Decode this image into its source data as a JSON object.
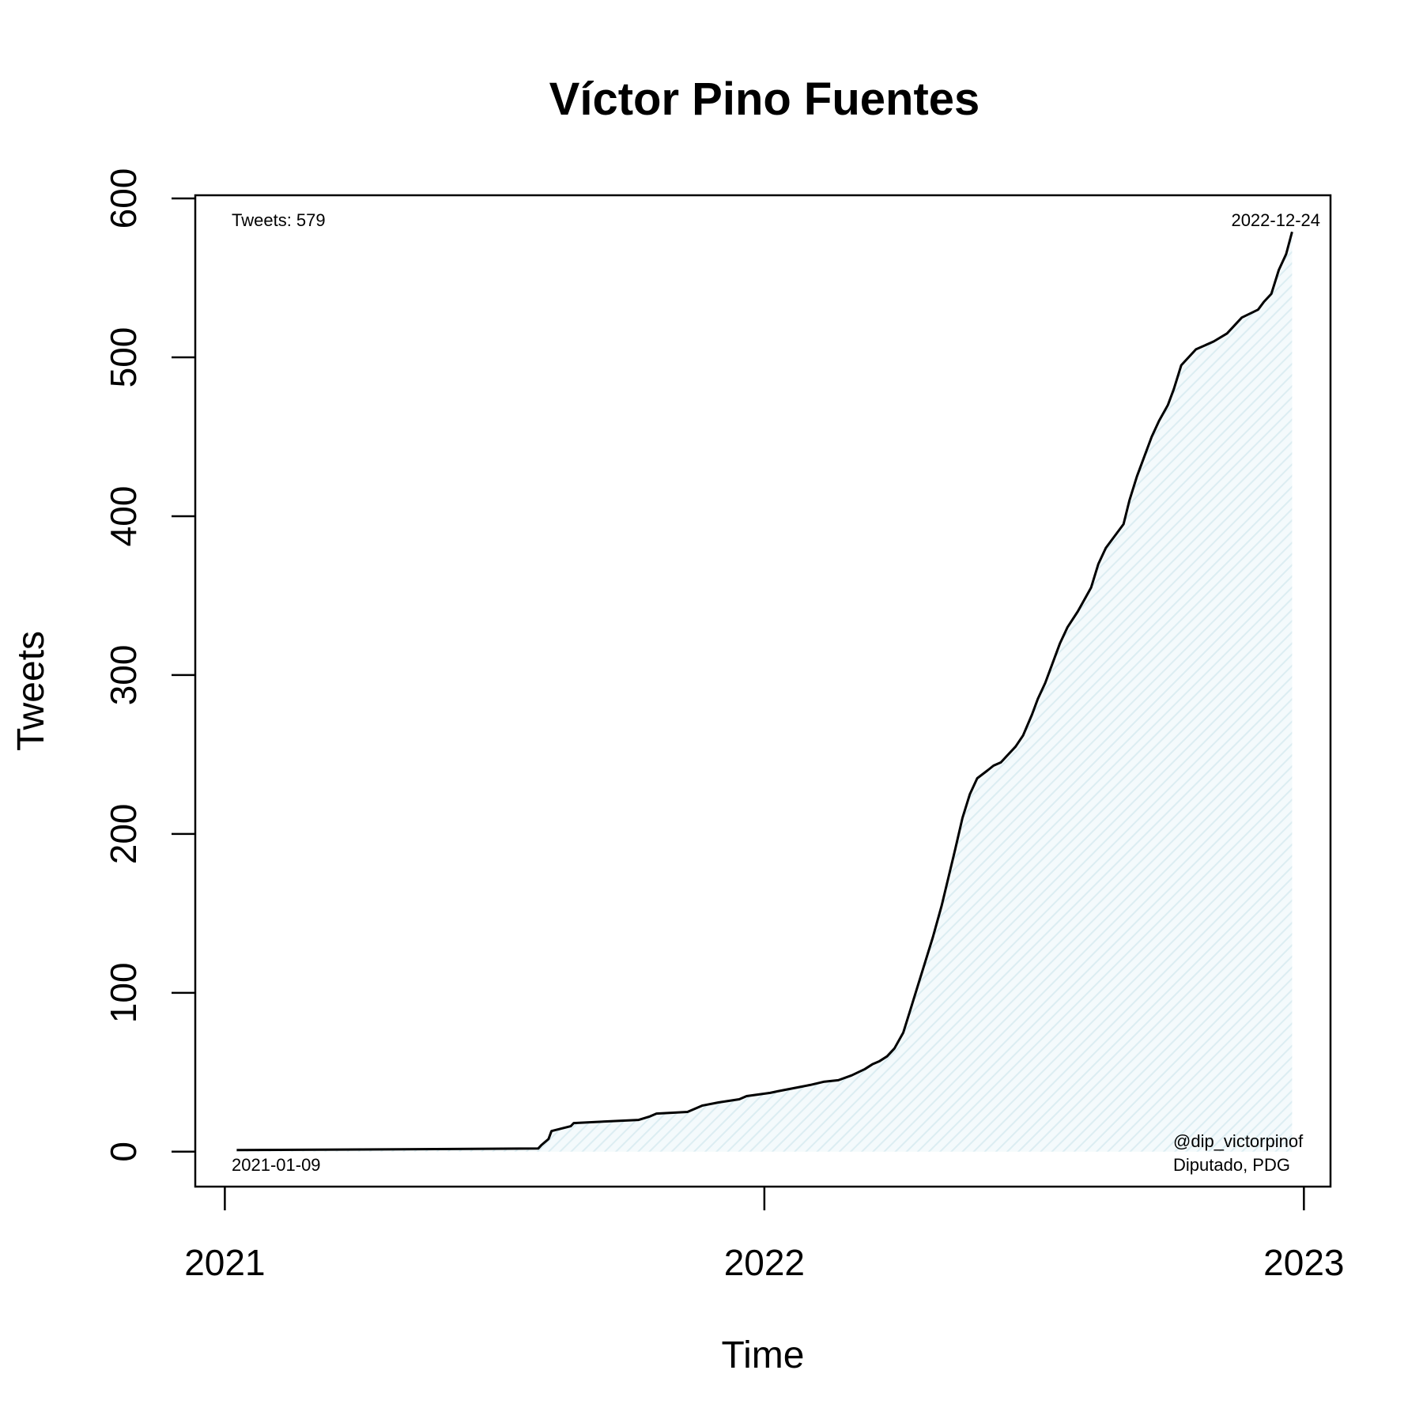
{
  "chart_data": {
    "type": "area",
    "title": "Víctor Pino Fuentes",
    "xlabel": "Time",
    "ylabel": "Tweets",
    "x_ticks": [
      "2021",
      "2022",
      "2023"
    ],
    "y_ticks": [
      0,
      100,
      200,
      300,
      400,
      500,
      600
    ],
    "xlim": [
      "2020-12-12",
      "2023-01-19"
    ],
    "ylim": [
      -22,
      602
    ],
    "grid": false,
    "fill_color": "#e8f4f7",
    "line_color": "#000000",
    "annotations": {
      "top_left": "Tweets: 579",
      "top_right": "2022-12-24",
      "bottom_left": "2021-01-09",
      "bottom_right_1": "@dip_victorpinof",
      "bottom_right_2": "Diputado, PDG"
    },
    "series": [
      {
        "x": [
          "2021-01-09",
          "2021-08-01",
          "2021-08-03",
          "2021-08-08",
          "2021-08-10",
          "2021-08-23",
          "2021-08-25",
          "2021-09-15",
          "2021-10-08",
          "2021-10-15",
          "2021-10-20",
          "2021-11-10",
          "2021-11-15",
          "2021-11-20",
          "2021-12-01",
          "2021-12-15",
          "2021-12-20",
          "2022-01-05",
          "2022-01-10",
          "2022-02-01",
          "2022-02-10",
          "2022-02-20",
          "2022-03-01",
          "2022-03-10",
          "2022-03-15",
          "2022-03-20",
          "2022-03-25",
          "2022-03-30",
          "2022-04-05",
          "2022-04-10",
          "2022-04-15",
          "2022-04-20",
          "2022-04-25",
          "2022-05-01",
          "2022-05-10",
          "2022-05-15",
          "2022-05-20",
          "2022-05-25",
          "2022-06-01",
          "2022-06-05",
          "2022-06-10",
          "2022-06-20",
          "2022-06-25",
          "2022-07-01",
          "2022-07-05",
          "2022-07-10",
          "2022-07-20",
          "2022-07-25",
          "2022-08-01",
          "2022-08-10",
          "2022-08-15",
          "2022-08-20",
          "2022-09-01",
          "2022-09-05",
          "2022-09-10",
          "2022-09-20",
          "2022-09-25",
          "2022-10-01",
          "2022-10-05",
          "2022-10-10",
          "2022-10-20",
          "2022-11-01",
          "2022-11-10",
          "2022-11-20",
          "2022-12-01",
          "2022-12-05",
          "2022-12-10",
          "2022-12-15",
          "2022-12-20",
          "2022-12-24"
        ],
        "y": [
          1,
          2,
          4,
          8,
          13,
          16,
          18,
          19,
          20,
          22,
          24,
          25,
          27,
          29,
          31,
          33,
          35,
          37,
          38,
          42,
          44,
          45,
          48,
          52,
          55,
          57,
          60,
          65,
          75,
          90,
          105,
          120,
          135,
          155,
          190,
          210,
          225,
          235,
          240,
          243,
          245,
          255,
          262,
          275,
          285,
          295,
          320,
          330,
          340,
          355,
          370,
          380,
          395,
          410,
          425,
          450,
          460,
          470,
          480,
          495,
          505,
          510,
          515,
          525,
          530,
          535,
          540,
          555,
          565,
          579
        ]
      }
    ]
  }
}
